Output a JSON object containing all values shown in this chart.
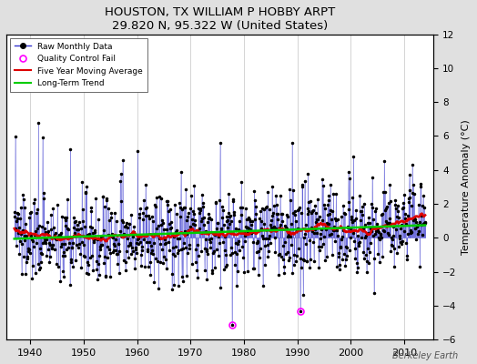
{
  "title": "HOUSTON, TX WILLIAM P HOBBY ARPT",
  "subtitle": "29.820 N, 95.322 W (United States)",
  "ylabel_right": "Temperature Anomaly (°C)",
  "watermark": "Berkeley Earth",
  "ylim": [
    -6,
    12
  ],
  "yticks": [
    -6,
    -4,
    -2,
    0,
    2,
    4,
    6,
    8,
    10,
    12
  ],
  "xlim": [
    1935.5,
    2015.5
  ],
  "xticks": [
    1940,
    1950,
    1960,
    1970,
    1980,
    1990,
    2000,
    2010
  ],
  "start_year": 1937,
  "end_year": 2013,
  "bg_color": "#e0e0e0",
  "plot_bg_color": "#ffffff",
  "raw_line_color": "#3333cc",
  "raw_marker_color": "#000000",
  "moving_avg_color": "#dd0000",
  "trend_color": "#00cc00",
  "qc_fail_color": "#ff00ff",
  "seed": 137
}
